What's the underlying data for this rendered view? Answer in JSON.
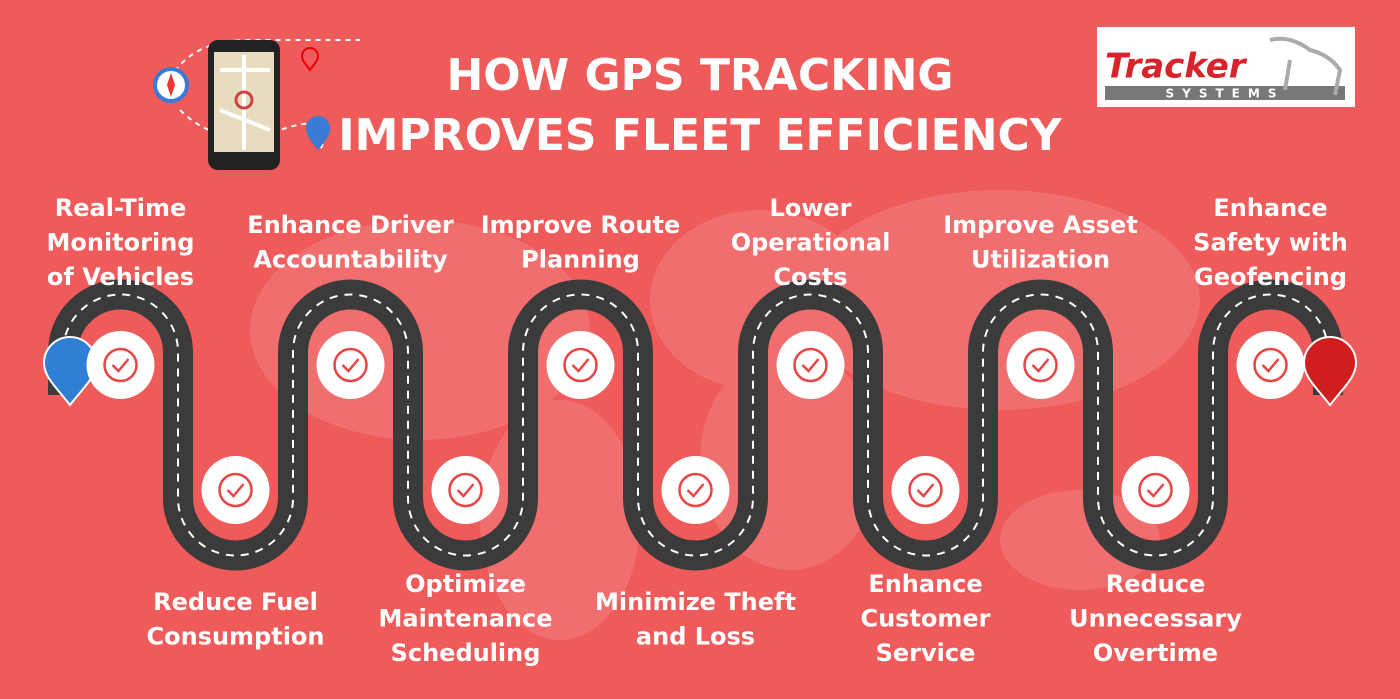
{
  "header": {
    "title_lines": [
      "HOW GPS TRACKING",
      "IMPROVES FLEET EFFICIENCY"
    ]
  },
  "logo": {
    "name": "Tracker",
    "sub": "SYSTEMS"
  },
  "steps": [
    {
      "lines": [
        "Real-Time",
        "Monitoring",
        "of Vehicles"
      ]
    },
    {
      "lines": [
        "Reduce Fuel",
        "Consumption"
      ]
    },
    {
      "lines": [
        "Enhance Driver",
        "Accountability"
      ]
    },
    {
      "lines": [
        "Optimize",
        "Maintenance",
        "Scheduling"
      ]
    },
    {
      "lines": [
        "Improve Route",
        "Planning"
      ]
    },
    {
      "lines": [
        "Minimize Theft",
        "and Loss"
      ]
    },
    {
      "lines": [
        "Lower",
        "Operational",
        "Costs"
      ]
    },
    {
      "lines": [
        "Enhance",
        "Customer",
        "Service"
      ]
    },
    {
      "lines": [
        "Improve Asset",
        "Utilization"
      ]
    },
    {
      "lines": [
        "Reduce",
        "Unnecessary",
        "Overtime"
      ]
    },
    {
      "lines": [
        "Enhance",
        "Safety with",
        "Geofencing"
      ]
    }
  ]
}
